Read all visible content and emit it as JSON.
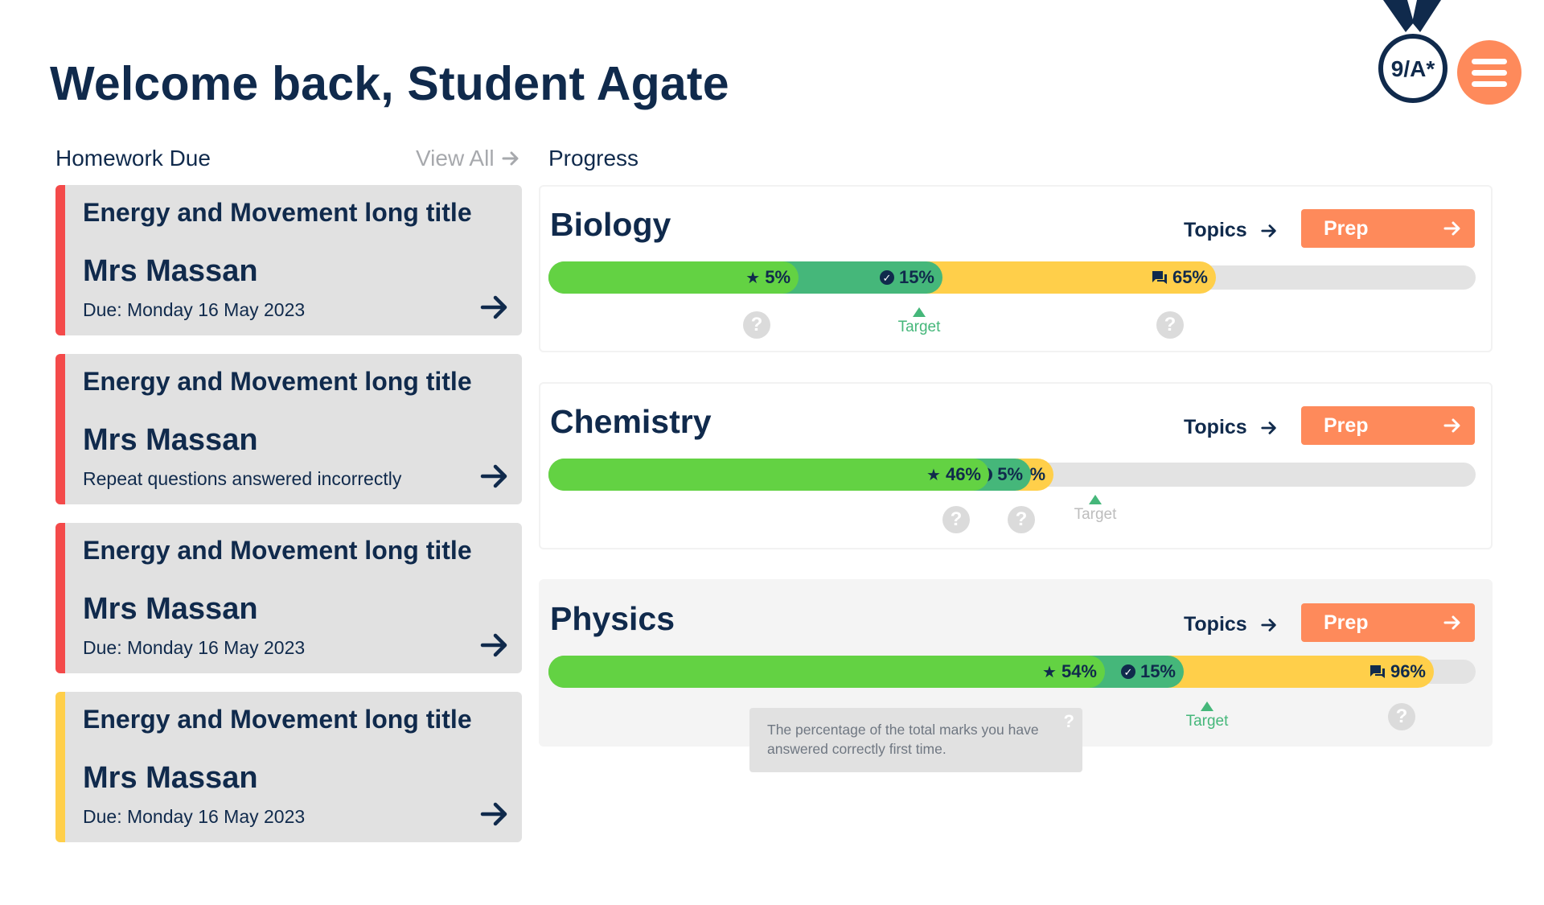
{
  "header": {
    "welcome": "Welcome back, Student Agate",
    "grade_badge": "9/A*",
    "menu_icon": "hamburger-menu-icon",
    "colors": {
      "navy": "#102a4c",
      "orange": "#fe8a5b"
    }
  },
  "homework": {
    "title": "Homework Due",
    "view_all": "View All",
    "items": [
      {
        "title": "Energy and Movement long title",
        "teacher": "Mrs Massan",
        "subtitle": "Due: Monday 16 May 2023",
        "stripe_color": "#f44a4a"
      },
      {
        "title": "Energy and Movement long title",
        "teacher": "Mrs Massan",
        "subtitle": "Repeat questions answered incorrectly",
        "stripe_color": "#f44a4a"
      },
      {
        "title": "Energy and Movement long title",
        "teacher": "Mrs Massan",
        "subtitle": "Due: Monday 16 May 2023",
        "stripe_color": "#f44a4a"
      },
      {
        "title": "Energy and Movement long title",
        "teacher": "Mrs Massan",
        "subtitle": "Due: Monday 16 May 2023",
        "stripe_color": "#ffcf4a"
      }
    ]
  },
  "progress": {
    "title": "Progress",
    "topics_label": "Topics",
    "prep_label": "Prep",
    "target_label": "Target",
    "colors": {
      "first_time": "#63d243",
      "mastered": "#45b77a",
      "attempted": "#ffcf4a"
    },
    "subjects": [
      {
        "name": "Biology",
        "first_time": "5%",
        "mastered": "15%",
        "attempted": "65%",
        "first_time_level": 0.27,
        "mastered_level": 0.425,
        "attempted_level": 0.72,
        "target_level": 0.4
      },
      {
        "name": "Chemistry",
        "first_time": "46%",
        "mastered": "5%",
        "attempted": "9%",
        "first_time_level": 0.475,
        "mastered_level": 0.52,
        "attempted_level": 0.545,
        "target_level": 0.59
      },
      {
        "name": "Physics",
        "first_time": "54%",
        "mastered": "15%",
        "attempted": "96%",
        "first_time_level": 0.6,
        "mastered_level": 0.685,
        "attempted_level": 0.955,
        "target_level": 0.71,
        "tooltip": "The percentage of the total marks you have answered correctly first time."
      }
    ]
  }
}
